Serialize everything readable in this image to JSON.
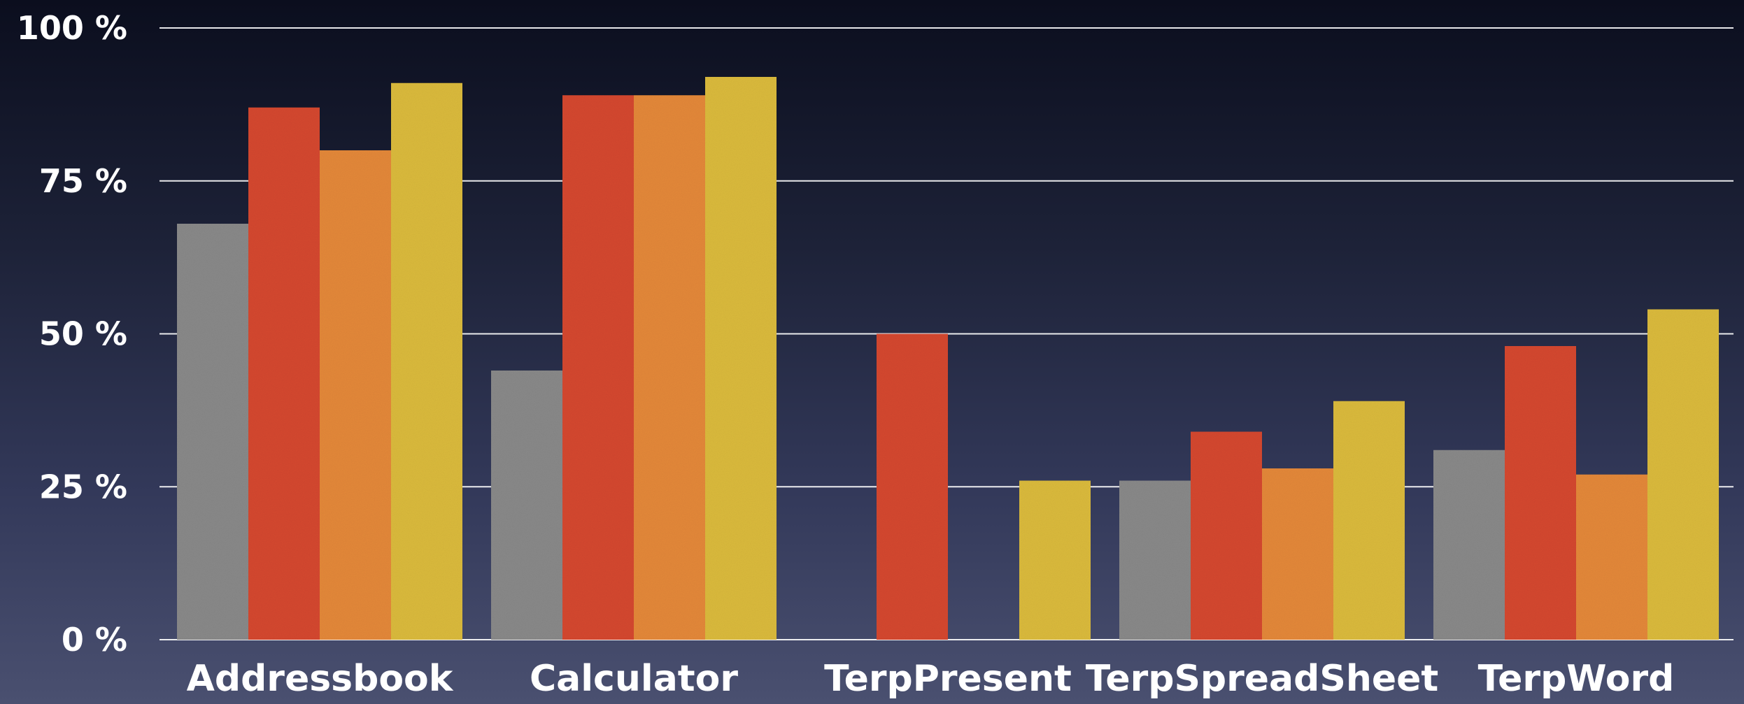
{
  "chart_data": {
    "type": "bar",
    "title": "",
    "xlabel": "",
    "ylabel": "",
    "ylim": [
      0,
      100
    ],
    "yticks": [
      0,
      25,
      50,
      75,
      100
    ],
    "ytick_labels": [
      "0 %",
      "25 %",
      "50 %",
      "75 %",
      "100 %"
    ],
    "grid": true,
    "categories": [
      "Addressbook",
      "Calculator",
      "TerpPresent",
      "TerpSpreadSheet",
      "TerpWord"
    ],
    "series": [
      {
        "color": "#8a8a8a",
        "values": [
          68,
          44,
          0,
          26,
          31
        ]
      },
      {
        "color": "#d64a33",
        "values": [
          87,
          89,
          50,
          34,
          48
        ]
      },
      {
        "color": "#e5893a",
        "values": [
          80,
          89,
          0,
          28,
          27
        ]
      },
      {
        "color": "#dcbb3e",
        "values": [
          91,
          92,
          26,
          39,
          54
        ]
      }
    ]
  }
}
